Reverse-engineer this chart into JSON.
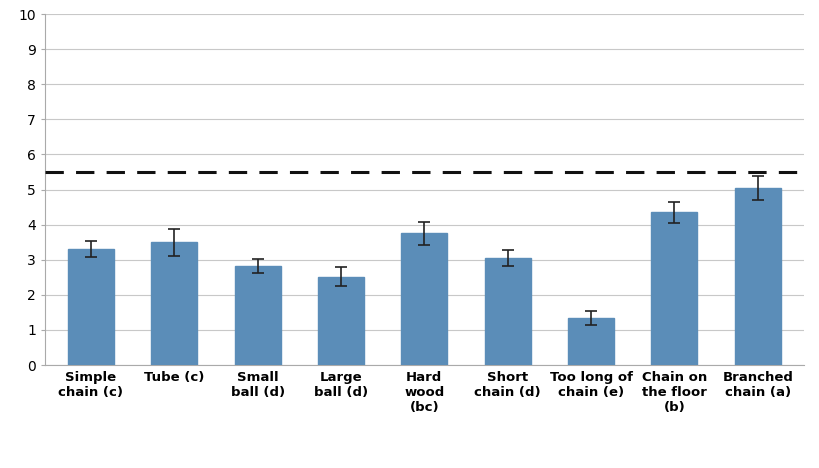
{
  "categories": [
    "Simple\nchain (c)",
    "Tube (c)",
    "Small\nball (d)",
    "Large\nball (d)",
    "Hard\nwood\n(bc)",
    "Short\nchain (d)",
    "Too long of\nchain (e)",
    "Chain on\nthe floor\n(b)",
    "Branched\nchain (a)"
  ],
  "values": [
    3.3,
    3.5,
    2.82,
    2.52,
    3.75,
    3.05,
    1.35,
    4.35,
    5.05
  ],
  "errors": [
    0.22,
    0.38,
    0.2,
    0.28,
    0.32,
    0.22,
    0.2,
    0.3,
    0.35
  ],
  "bar_color": "#5b8db8",
  "dashed_line_y": 5.5,
  "ylim": [
    0,
    10
  ],
  "yticks": [
    0,
    1,
    2,
    3,
    4,
    5,
    6,
    7,
    8,
    9,
    10
  ],
  "background_color": "#ffffff",
  "grid_color": "#c8c8c8",
  "error_cap_color": "#222222",
  "dashed_line_color": "#111111",
  "bar_width": 0.55,
  "tick_label_fontsize": 9.5,
  "ytick_label_fontsize": 10
}
